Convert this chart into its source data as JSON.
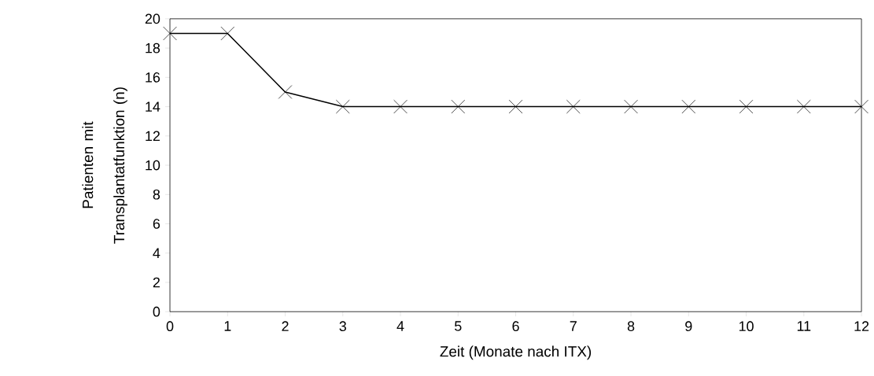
{
  "chart_data": {
    "type": "line",
    "xlabel": "Zeit (Monate nach ITX)",
    "ylabel": "Patienten mit Transplantatfunktion (n)",
    "x": [
      0,
      1,
      2,
      3,
      4,
      5,
      6,
      7,
      8,
      9,
      10,
      11,
      12
    ],
    "values": [
      19,
      19,
      15,
      14,
      14,
      14,
      14,
      14,
      14,
      14,
      14,
      14,
      14
    ],
    "color": "#000000",
    "marker": "cross",
    "line_style": "solid",
    "grid": false,
    "xlim": [
      0,
      12
    ],
    "xticks": [
      0,
      1,
      2,
      3,
      4,
      5,
      6,
      7,
      8,
      9,
      10,
      11,
      12
    ],
    "ylim": [
      0,
      20
    ],
    "yticks": [
      0,
      2,
      4,
      6,
      8,
      10,
      12,
      14,
      16,
      18,
      20
    ]
  }
}
